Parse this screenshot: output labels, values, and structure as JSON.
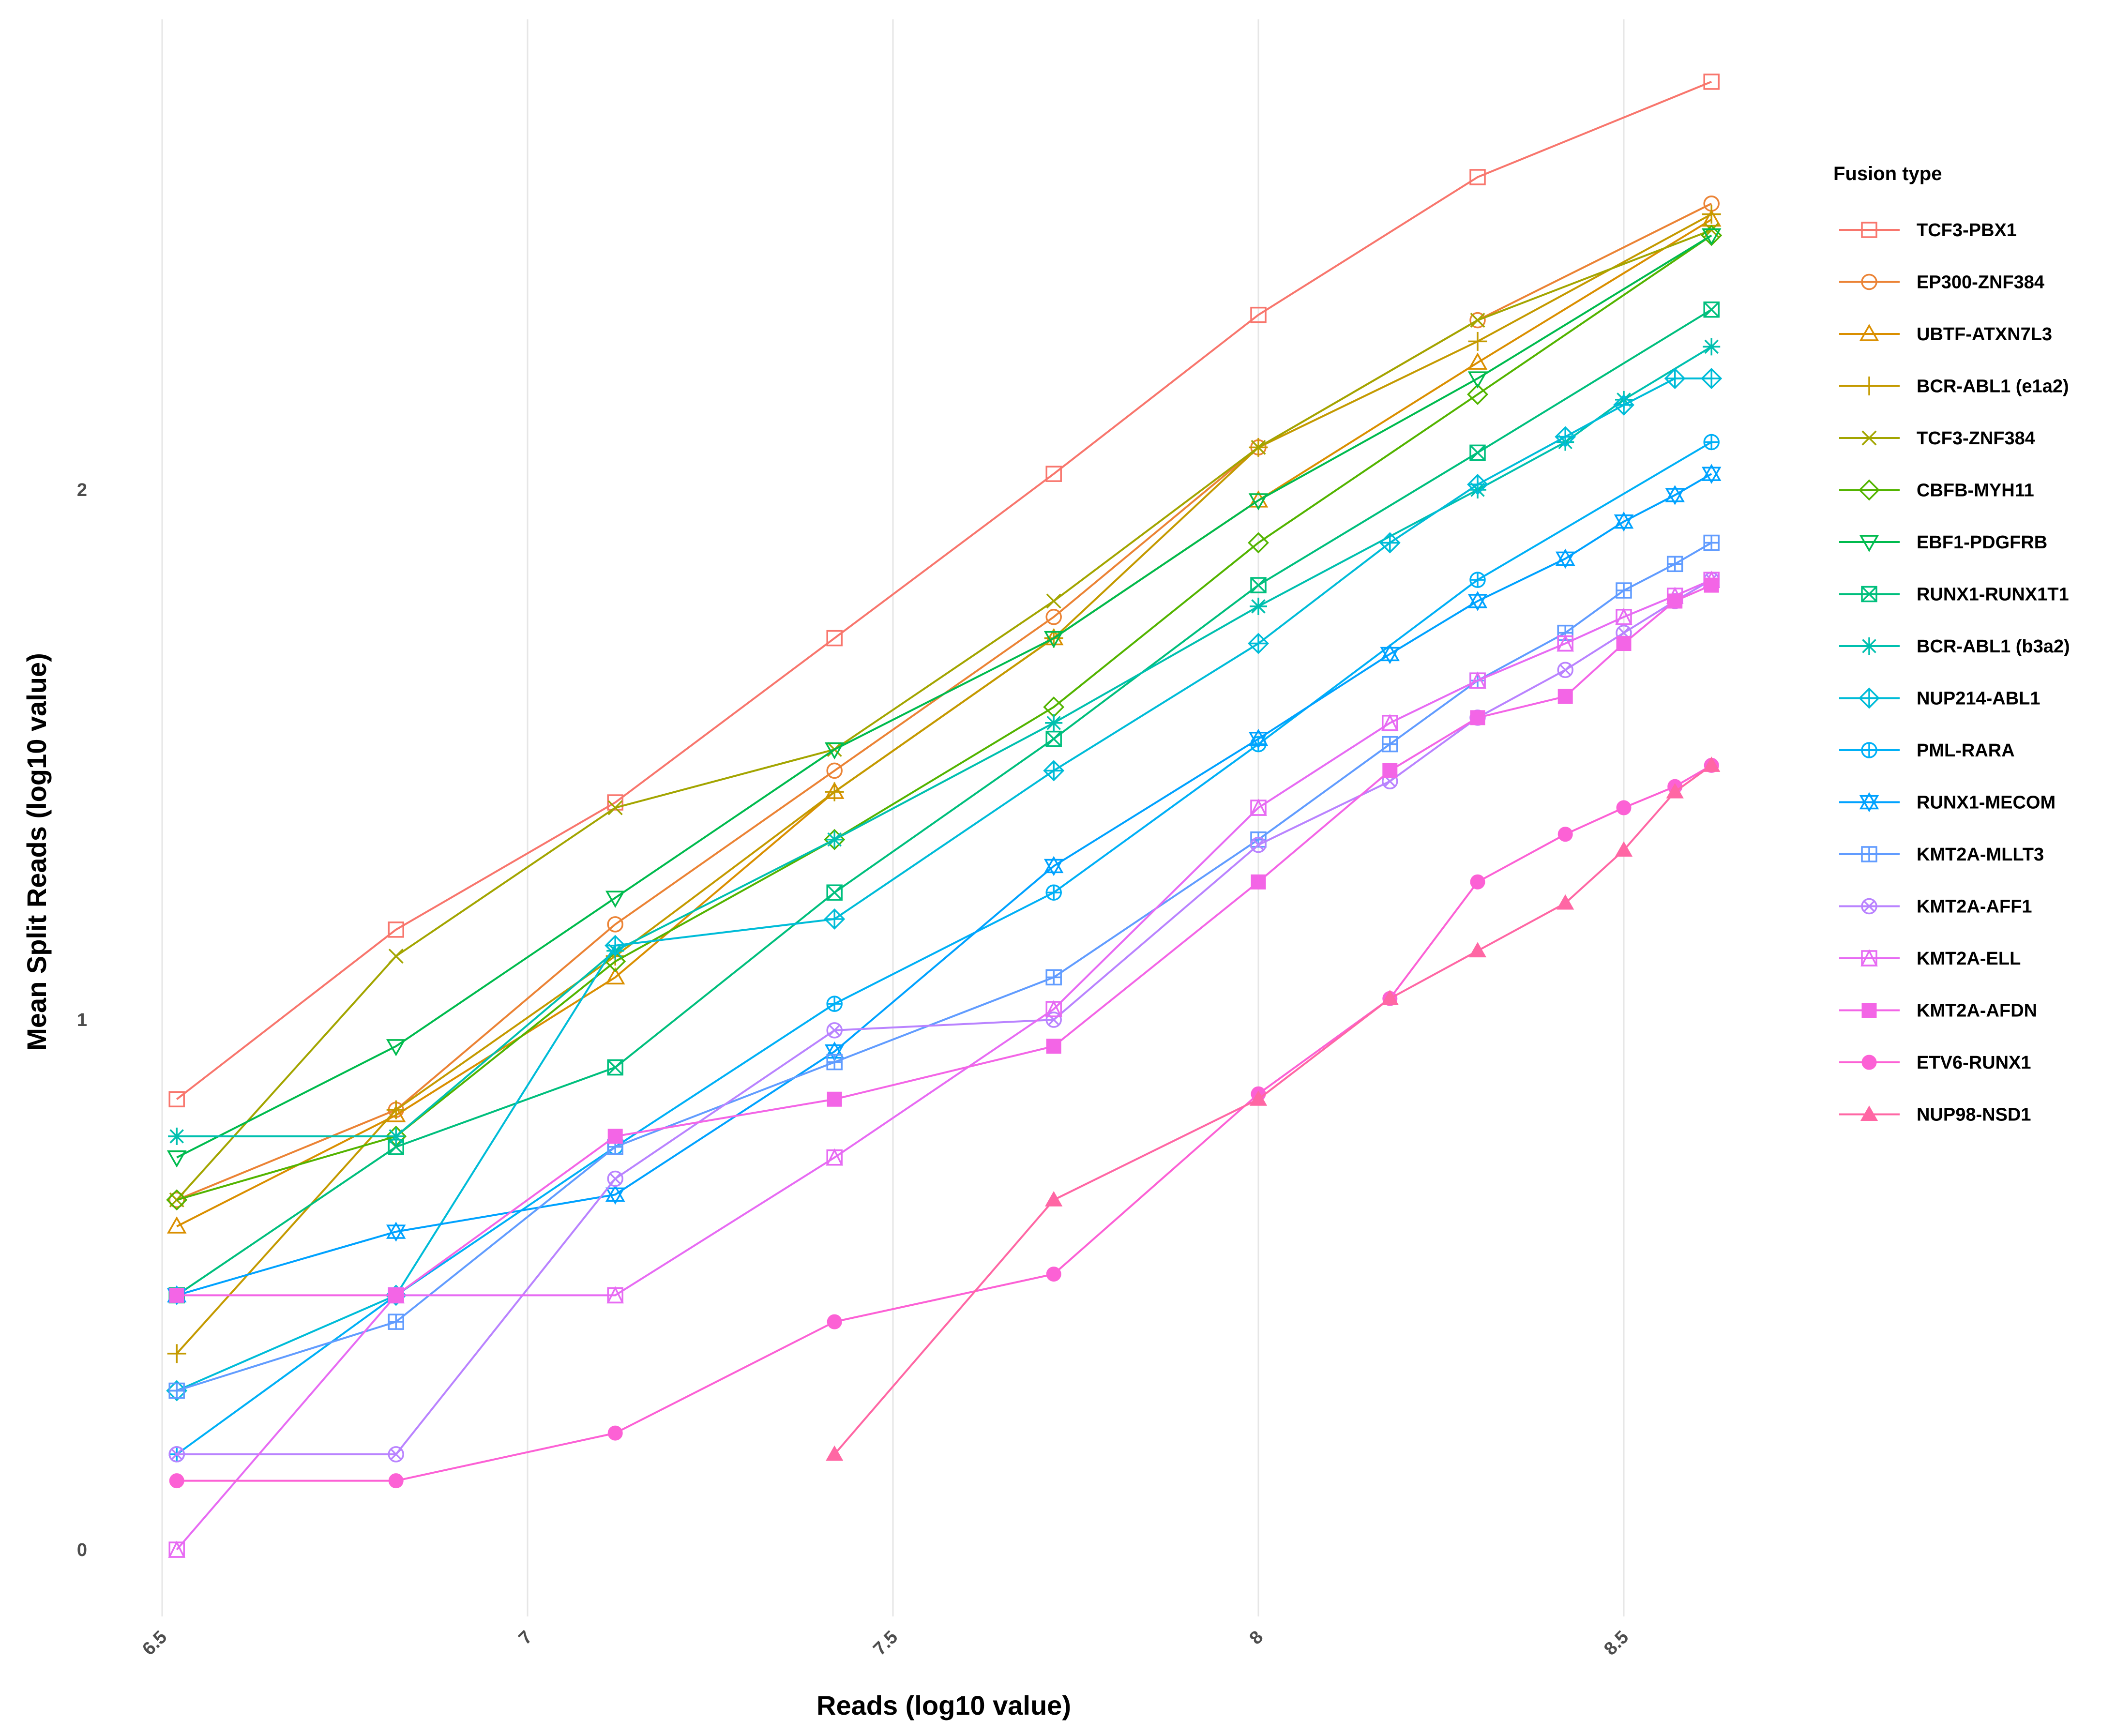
{
  "chart_data": {
    "type": "line",
    "xlabel": "Reads (log10 value)",
    "ylabel": "Mean Split Reads (log10 value)",
    "xlim": [
      6.5,
      8.62
    ],
    "ylim": [
      -0.13,
      2.9
    ],
    "x_ticks": [
      6.5,
      7,
      7.5,
      8,
      8.5
    ],
    "x_tick_labels": [
      "6.5",
      "7",
      "7.5",
      "8",
      "8.5"
    ],
    "y_ticks": [
      0,
      1,
      2
    ],
    "y_tick_labels": [
      "0",
      "1",
      "2"
    ],
    "grid": "vertical major gridlines",
    "legend": {
      "title": "Fusion type",
      "position": "right"
    },
    "series": [
      {
        "name": "TCF3-PBX1",
        "color": "#F8766D",
        "shape": "square-open",
        "x": [
          6.52,
          6.82,
          7.12,
          7.42,
          7.72,
          8.0,
          8.3,
          8.62
        ],
        "y": [
          0.85,
          1.17,
          1.41,
          1.72,
          2.03,
          2.33,
          2.59,
          2.77
        ]
      },
      {
        "name": "EP300-ZNF384",
        "color": "#EB8335",
        "shape": "circle-open",
        "x": [
          6.52,
          6.82,
          7.12,
          7.42,
          7.72,
          8.0,
          8.3,
          8.62
        ],
        "y": [
          0.66,
          0.83,
          1.18,
          1.47,
          1.76,
          2.08,
          2.32,
          2.54
        ]
      },
      {
        "name": "UBTF-ATXN7L3",
        "color": "#DA8F00",
        "shape": "triangle-open",
        "x": [
          6.52,
          6.82,
          7.12,
          7.42,
          7.72,
          8.0,
          8.3,
          8.62
        ],
        "y": [
          0.61,
          0.82,
          1.08,
          1.43,
          1.72,
          1.98,
          2.24,
          2.51
        ]
      },
      {
        "name": "BCR-ABL1 (e1a2)",
        "color": "#C49A00",
        "shape": "plus",
        "x": [
          6.52,
          6.82,
          7.12,
          7.42,
          7.72,
          8.0,
          8.3,
          8.62
        ],
        "y": [
          0.37,
          0.83,
          1.12,
          1.43,
          1.72,
          2.08,
          2.28,
          2.52
        ]
      },
      {
        "name": "TCF3-ZNF384",
        "color": "#A3A500",
        "shape": "cross",
        "x": [
          6.52,
          6.82,
          7.12,
          7.42,
          7.72,
          8.0,
          8.3,
          8.62
        ],
        "y": [
          0.66,
          1.12,
          1.4,
          1.51,
          1.79,
          2.08,
          2.32,
          2.49
        ]
      },
      {
        "name": "CBFB-MYH11",
        "color": "#53B400",
        "shape": "diamond-open",
        "x": [
          6.52,
          6.82,
          7.12,
          7.42,
          7.72,
          8.0,
          8.3,
          8.62
        ],
        "y": [
          0.66,
          0.78,
          1.11,
          1.34,
          1.59,
          1.9,
          2.18,
          2.48
        ]
      },
      {
        "name": "EBF1-PDGFRB",
        "color": "#00BB4E",
        "shape": "triangle-down-open",
        "x": [
          6.52,
          6.82,
          7.12,
          7.42,
          7.72,
          8.0,
          8.3,
          8.62
        ],
        "y": [
          0.74,
          0.95,
          1.23,
          1.51,
          1.72,
          1.98,
          2.21,
          2.48
        ]
      },
      {
        "name": "RUNX1-RUNX1T1",
        "color": "#00BF7D",
        "shape": "square-cross",
        "x": [
          6.52,
          6.82,
          7.12,
          7.42,
          7.72,
          8.0,
          8.3,
          8.62
        ],
        "y": [
          0.48,
          0.76,
          0.91,
          1.24,
          1.53,
          1.82,
          2.07,
          2.34
        ]
      },
      {
        "name": "BCR-ABL1 (b3a2)",
        "color": "#00C0AF",
        "shape": "asterisk",
        "x": [
          6.52,
          6.82,
          7.12,
          7.42,
          7.72,
          8.0,
          8.3,
          8.42,
          8.5,
          8.62
        ],
        "y": [
          0.78,
          0.78,
          1.13,
          1.34,
          1.56,
          1.78,
          2.0,
          2.09,
          2.17,
          2.27
        ]
      },
      {
        "name": "NUP214-ABL1",
        "color": "#00BCD8",
        "shape": "diamond-plus",
        "x": [
          6.52,
          6.82,
          7.12,
          7.42,
          7.72,
          8.0,
          8.18,
          8.3,
          8.42,
          8.5,
          8.57,
          8.62
        ],
        "y": [
          0.3,
          0.48,
          1.14,
          1.19,
          1.47,
          1.71,
          1.9,
          2.01,
          2.1,
          2.16,
          2.21,
          2.21
        ]
      },
      {
        "name": "PML-RARA",
        "color": "#00B0F6",
        "shape": "circle-plus",
        "x": [
          6.52,
          6.82,
          7.12,
          7.42,
          7.72,
          8.0,
          8.3,
          8.62
        ],
        "y": [
          0.18,
          0.48,
          0.76,
          1.03,
          1.24,
          1.52,
          1.83,
          2.09
        ]
      },
      {
        "name": "RUNX1-MECOM",
        "color": "#00A2FF",
        "shape": "star-of-david",
        "x": [
          6.52,
          6.82,
          7.12,
          7.42,
          7.72,
          8.0,
          8.18,
          8.3,
          8.42,
          8.5,
          8.57,
          8.62
        ],
        "y": [
          0.48,
          0.6,
          0.67,
          0.94,
          1.29,
          1.53,
          1.69,
          1.79,
          1.87,
          1.94,
          1.99,
          2.03
        ]
      },
      {
        "name": "KMT2A-MLLT3",
        "color": "#619CFF",
        "shape": "square-plus",
        "x": [
          6.52,
          6.82,
          7.12,
          7.42,
          7.72,
          8.0,
          8.18,
          8.3,
          8.42,
          8.5,
          8.57,
          8.62
        ],
        "y": [
          0.3,
          0.43,
          0.76,
          0.92,
          1.08,
          1.34,
          1.52,
          1.64,
          1.73,
          1.81,
          1.86,
          1.9
        ]
      },
      {
        "name": "KMT2A-AFF1",
        "color": "#B983FF",
        "shape": "circle-cross",
        "x": [
          6.52,
          6.82,
          7.12,
          7.42,
          7.72,
          8.0,
          8.18,
          8.3,
          8.42,
          8.5,
          8.57,
          8.62
        ],
        "y": [
          0.18,
          0.18,
          0.7,
          0.98,
          1.0,
          1.33,
          1.45,
          1.57,
          1.66,
          1.73,
          1.79,
          1.83
        ]
      },
      {
        "name": "KMT2A-ELL",
        "color": "#E76BF3",
        "shape": "square-triangle",
        "x": [
          6.52,
          6.82,
          7.12,
          7.42,
          7.72,
          8.0,
          8.18,
          8.3,
          8.42,
          8.5,
          8.57,
          8.62
        ],
        "y": [
          0.0,
          0.48,
          0.48,
          0.74,
          1.02,
          1.4,
          1.56,
          1.64,
          1.71,
          1.76,
          1.8,
          1.83
        ]
      },
      {
        "name": "KMT2A-AFDN",
        "color": "#F365E6",
        "shape": "square-filled",
        "x": [
          6.52,
          6.82,
          7.12,
          7.42,
          7.72,
          8.0,
          8.18,
          8.3,
          8.42,
          8.5,
          8.57,
          8.62
        ],
        "y": [
          0.48,
          0.48,
          0.78,
          0.85,
          0.95,
          1.26,
          1.47,
          1.57,
          1.61,
          1.71,
          1.79,
          1.82
        ]
      },
      {
        "name": "ETV6-RUNX1",
        "color": "#FC61D5",
        "shape": "circle-filled",
        "x": [
          6.52,
          6.82,
          7.12,
          7.42,
          7.72,
          8.0,
          8.18,
          8.3,
          8.42,
          8.5,
          8.57,
          8.62
        ],
        "y": [
          0.13,
          0.13,
          0.22,
          0.43,
          0.52,
          0.86,
          1.04,
          1.26,
          1.35,
          1.4,
          1.44,
          1.48
        ]
      },
      {
        "name": "NUP98-NSD1",
        "color": "#FF67A4",
        "shape": "triangle-filled",
        "x": [
          7.42,
          7.72,
          8.0,
          8.18,
          8.3,
          8.42,
          8.5,
          8.57,
          8.62
        ],
        "y": [
          0.18,
          0.66,
          0.85,
          1.04,
          1.13,
          1.22,
          1.32,
          1.43,
          1.48
        ]
      }
    ]
  }
}
